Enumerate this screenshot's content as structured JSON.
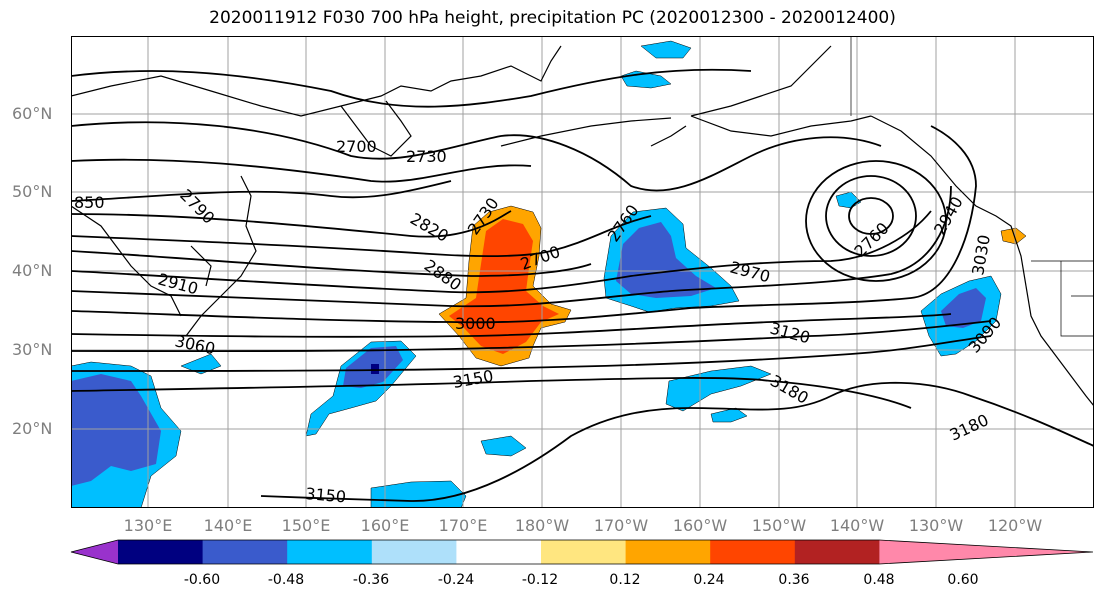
{
  "title": "2020011912 F030 700 hPa height, precipitation PC (2020012300 - 2020012400)",
  "lat_labels": [
    "60°N",
    "50°N",
    "40°N",
    "30°N",
    "20°N"
  ],
  "lon_labels": [
    "130°E",
    "140°E",
    "150°E",
    "160°E",
    "170°E",
    "180°W",
    "170°W",
    "160°W",
    "150°W",
    "140°W",
    "130°W",
    "120°W"
  ],
  "contour_labels": [
    "2700",
    "2730",
    "850",
    "2790",
    "2820",
    "2730",
    "2760",
    "2700",
    "2880",
    "2910",
    "3000",
    "2970",
    "3120",
    "3060",
    "3150",
    "3180",
    "3180",
    "3150",
    "2760",
    "2940",
    "3030",
    "3090"
  ],
  "colorbar": {
    "ticks": [
      "-0.60",
      "-0.48",
      "-0.36",
      "-0.24",
      "-0.12",
      "0.12",
      "0.24",
      "0.36",
      "0.48",
      "0.60"
    ],
    "colors": [
      "#9932cc",
      "#000080",
      "#3a5bcc",
      "#00bfff",
      "#aee0fa",
      "#ffffff",
      "#ffe680",
      "#ffa500",
      "#ff4500",
      "#b22222",
      "#ff88aa"
    ]
  },
  "colors": {
    "negative_strong": "#3a5bcc",
    "negative_medium": "#00bfff",
    "negative_light": "#aee0fa",
    "positive_light": "#ffe680",
    "positive_medium": "#ffa500",
    "positive_strong": "#ff4500",
    "negative_extreme": "#000080"
  }
}
